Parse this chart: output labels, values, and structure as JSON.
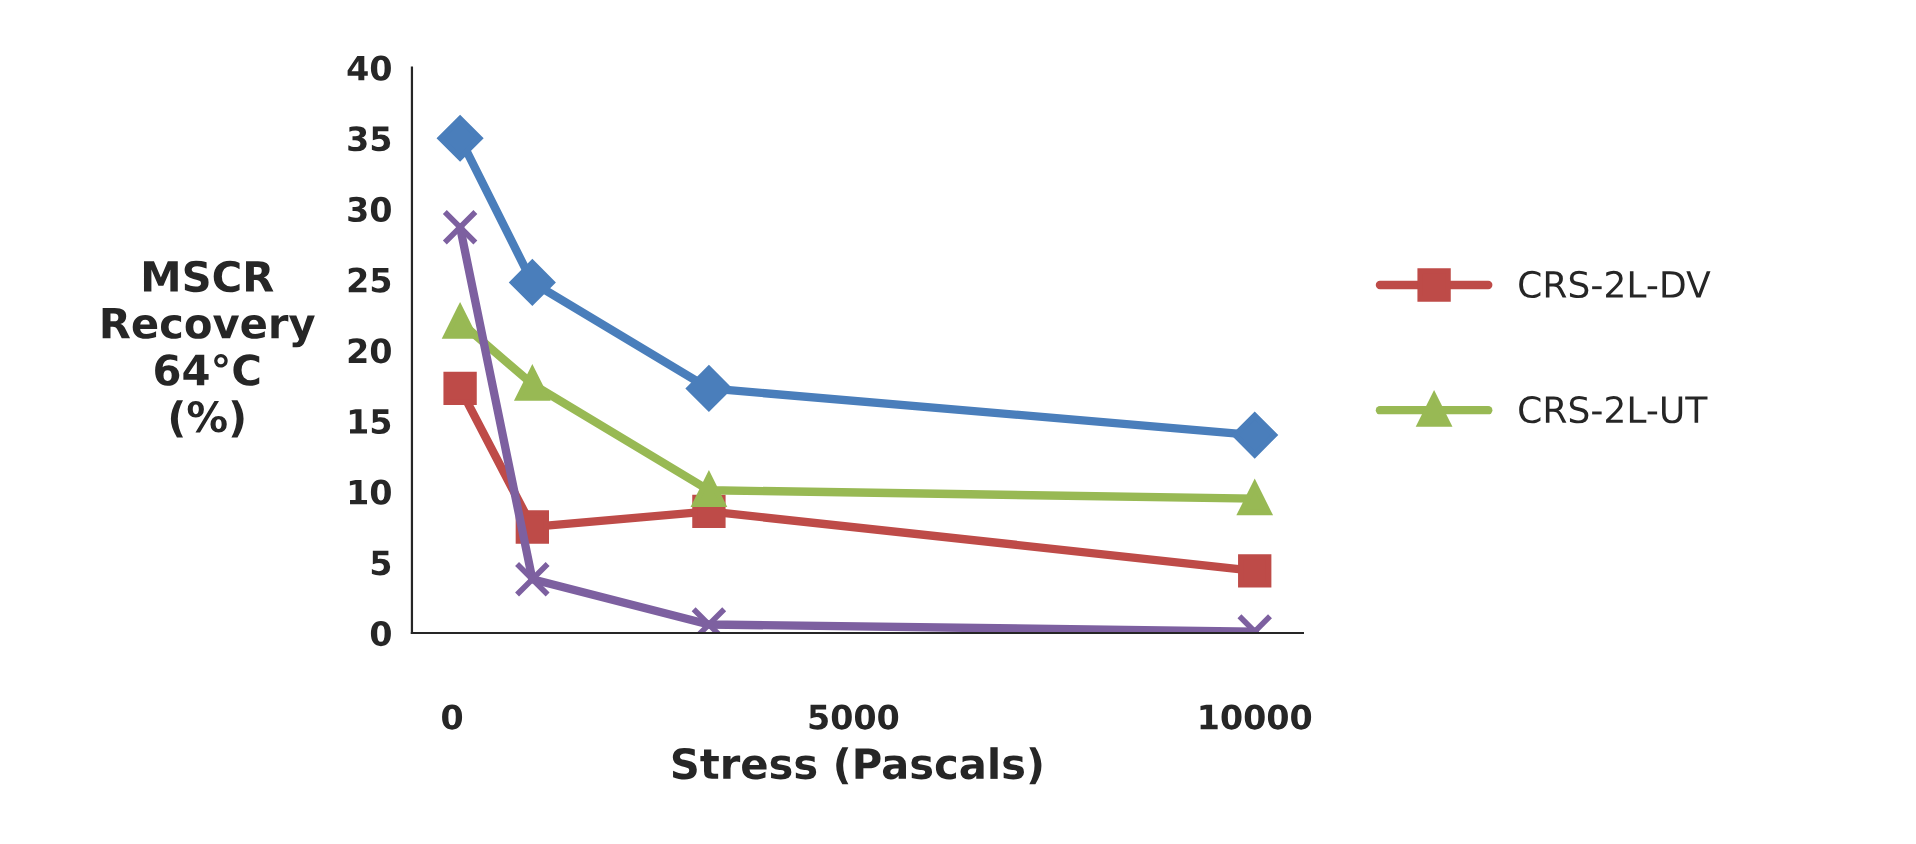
{
  "chart_data": {
    "type": "line",
    "xlabel": "Stress (Pascals)",
    "ylabel": "MSCR\nRecovery\n64°C\n(%)",
    "x": [
      100,
      1000,
      3200,
      10000
    ],
    "series": [
      {
        "color": "#4a7ebb",
        "values": [
          35,
          24.8,
          17.3,
          14
        ],
        "marker": "diamond"
      },
      {
        "name": "CRS-2L-DV",
        "color": "#be4b48",
        "values": [
          17.3,
          7.5,
          8.6,
          4.4
        ],
        "marker": "square"
      },
      {
        "name": "CRS-2L-UT",
        "color": "#98b954",
        "values": [
          22,
          17.6,
          10.1,
          9.5
        ],
        "marker": "triangle"
      },
      {
        "color": "#7d60a0",
        "values": [
          28.7,
          3.8,
          0.6,
          0.1
        ],
        "marker": "cross"
      }
    ],
    "xlim": [
      -500,
      10600
    ],
    "xticks": [
      0,
      5000,
      10000
    ],
    "ylim": [
      0,
      40
    ],
    "yticks": [
      0,
      5,
      10,
      15,
      20,
      25,
      30,
      35,
      40
    ],
    "grid": false,
    "legend": "right",
    "line_style": "solid"
  }
}
